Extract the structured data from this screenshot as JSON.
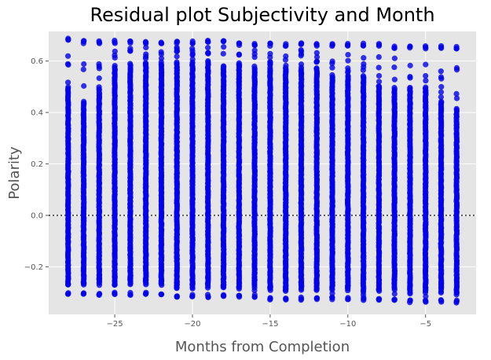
{
  "chart_data": {
    "type": "scatter",
    "title": "Residual plot Subjectivity and Month",
    "xlabel": "Months from Completion",
    "ylabel": "Polarity",
    "xlim": [
      -29.25,
      -1.75
    ],
    "ylim": [
      -0.385,
      0.715
    ],
    "x_ticks": [
      -25,
      -20,
      -15,
      -10,
      -5
    ],
    "x_tick_labels": [
      "−25",
      "−20",
      "−15",
      "−10",
      "−5"
    ],
    "y_ticks": [
      -0.2,
      0.0,
      0.2,
      0.4,
      0.6
    ],
    "y_tick_labels": [
      "−0.2",
      "0.0",
      "0.2",
      "0.4",
      "0.6"
    ],
    "grid": true,
    "reference_line": {
      "y": 0.0,
      "style": "dotted"
    },
    "point_color": "#0000ee",
    "background_color": "#e5e5e5",
    "grid_color": "#ffffff",
    "columns": [
      {
        "x": -28,
        "y_min": -0.31,
        "y_max": 0.69,
        "sparse_range": [
          0.5,
          0.63
        ]
      },
      {
        "x": -27,
        "y_min": -0.31,
        "y_max": 0.68,
        "sparse_range": [
          0.45,
          0.6
        ]
      },
      {
        "x": -26,
        "y_min": -0.31,
        "y_max": 0.68,
        "sparse_range": [
          0.5,
          0.62
        ]
      },
      {
        "x": -25,
        "y_min": -0.31,
        "y_max": 0.68,
        "sparse_range": [
          0.58,
          0.65
        ]
      },
      {
        "x": -24,
        "y_min": -0.31,
        "y_max": 0.68,
        "sparse_range": [
          0.58,
          0.65
        ]
      },
      {
        "x": -23,
        "y_min": -0.31,
        "y_max": 0.68,
        "sparse_range": [
          0.6,
          0.66
        ]
      },
      {
        "x": -22,
        "y_min": -0.31,
        "y_max": 0.68,
        "sparse_range": [
          0.6,
          0.66
        ]
      },
      {
        "x": -21,
        "y_min": -0.32,
        "y_max": 0.68,
        "sparse_range": [
          0.6,
          0.66
        ]
      },
      {
        "x": -20,
        "y_min": -0.32,
        "y_max": 0.68,
        "sparse_range": [
          0.6,
          0.66
        ]
      },
      {
        "x": -19,
        "y_min": -0.32,
        "y_max": 0.68,
        "sparse_range": [
          0.6,
          0.66
        ]
      },
      {
        "x": -18,
        "y_min": -0.32,
        "y_max": 0.68,
        "sparse_range": [
          0.58,
          0.66
        ]
      },
      {
        "x": -17,
        "y_min": -0.32,
        "y_max": 0.67,
        "sparse_range": [
          0.58,
          0.65
        ]
      },
      {
        "x": -16,
        "y_min": -0.32,
        "y_max": 0.67,
        "sparse_range": [
          0.58,
          0.65
        ]
      },
      {
        "x": -15,
        "y_min": -0.33,
        "y_max": 0.67,
        "sparse_range": [
          0.58,
          0.65
        ]
      },
      {
        "x": -14,
        "y_min": -0.33,
        "y_max": 0.67,
        "sparse_range": [
          0.58,
          0.65
        ]
      },
      {
        "x": -13,
        "y_min": -0.33,
        "y_max": 0.67,
        "sparse_range": [
          0.58,
          0.65
        ]
      },
      {
        "x": -12,
        "y_min": -0.33,
        "y_max": 0.67,
        "sparse_range": [
          0.58,
          0.64
        ]
      },
      {
        "x": -11,
        "y_min": -0.33,
        "y_max": 0.67,
        "sparse_range": [
          0.55,
          0.64
        ]
      },
      {
        "x": -10,
        "y_min": -0.33,
        "y_max": 0.67,
        "sparse_range": [
          0.55,
          0.64
        ]
      },
      {
        "x": -9,
        "y_min": -0.33,
        "y_max": 0.67,
        "sparse_range": [
          0.55,
          0.64
        ]
      },
      {
        "x": -8,
        "y_min": -0.33,
        "y_max": 0.67,
        "sparse_range": [
          0.5,
          0.63
        ]
      },
      {
        "x": -7,
        "y_min": -0.33,
        "y_max": 0.66,
        "sparse_range": [
          0.5,
          0.62
        ]
      },
      {
        "x": -6,
        "y_min": -0.34,
        "y_max": 0.66,
        "sparse_range": [
          0.5,
          0.62
        ]
      },
      {
        "x": -5,
        "y_min": -0.34,
        "y_max": 0.66,
        "sparse_range": [
          0.5,
          0.62
        ]
      },
      {
        "x": -4,
        "y_min": -0.34,
        "y_max": 0.66,
        "sparse_range": [
          0.45,
          0.6
        ]
      },
      {
        "x": -3,
        "y_min": -0.34,
        "y_max": 0.66,
        "sparse_range": [
          0.42,
          0.6
        ]
      }
    ]
  }
}
